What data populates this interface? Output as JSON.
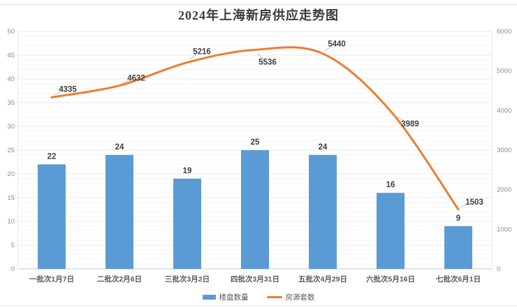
{
  "chart_data": {
    "type": "combo-bar-line",
    "title": "2024年上海新房供应走势图",
    "categories": [
      "一批次1月7日",
      "二批次2月6日",
      "三批次3月2日",
      "四批次3月31日",
      "五批次4月29日",
      "六批次5月16日",
      "七批次6月1日"
    ],
    "series": [
      {
        "name": "楼盘数量",
        "type": "bar",
        "axis": "left",
        "color": "#5B9BD5",
        "values": [
          22,
          24,
          19,
          25,
          24,
          16,
          9
        ]
      },
      {
        "name": "房源套数",
        "type": "line",
        "axis": "right",
        "color": "#ED7D31",
        "values": [
          4335,
          4632,
          5216,
          5536,
          5440,
          3989,
          1503
        ]
      }
    ],
    "left_axis": {
      "min": 0,
      "max": 50,
      "step": 5,
      "tick_labels": [
        "0",
        "5",
        "10",
        "15",
        "20",
        "25",
        "30",
        "35",
        "40",
        "45",
        "50"
      ]
    },
    "right_axis": {
      "min": 0,
      "max": 6000,
      "step": 1000,
      "tick_labels": [
        "0",
        "1000",
        "2000",
        "3000",
        "4000",
        "5000",
        "6000"
      ]
    },
    "legend": {
      "position": "bottom",
      "items": [
        "楼盘数量",
        "房源套数"
      ]
    },
    "grid": {
      "horizontal_major": true,
      "horizontal_minor": true,
      "vertical": false
    },
    "colors": {
      "bar": "#5B9BD5",
      "line": "#ED7D31",
      "data_label": "#404040",
      "axis_label": "#8a8a8a",
      "category_label": "#595959",
      "grid_major": "#e8e8e8",
      "grid_minor": "#f5f5f5",
      "axis_line": "#c8c8c8",
      "leader_line": "#c0c0c0"
    }
  }
}
